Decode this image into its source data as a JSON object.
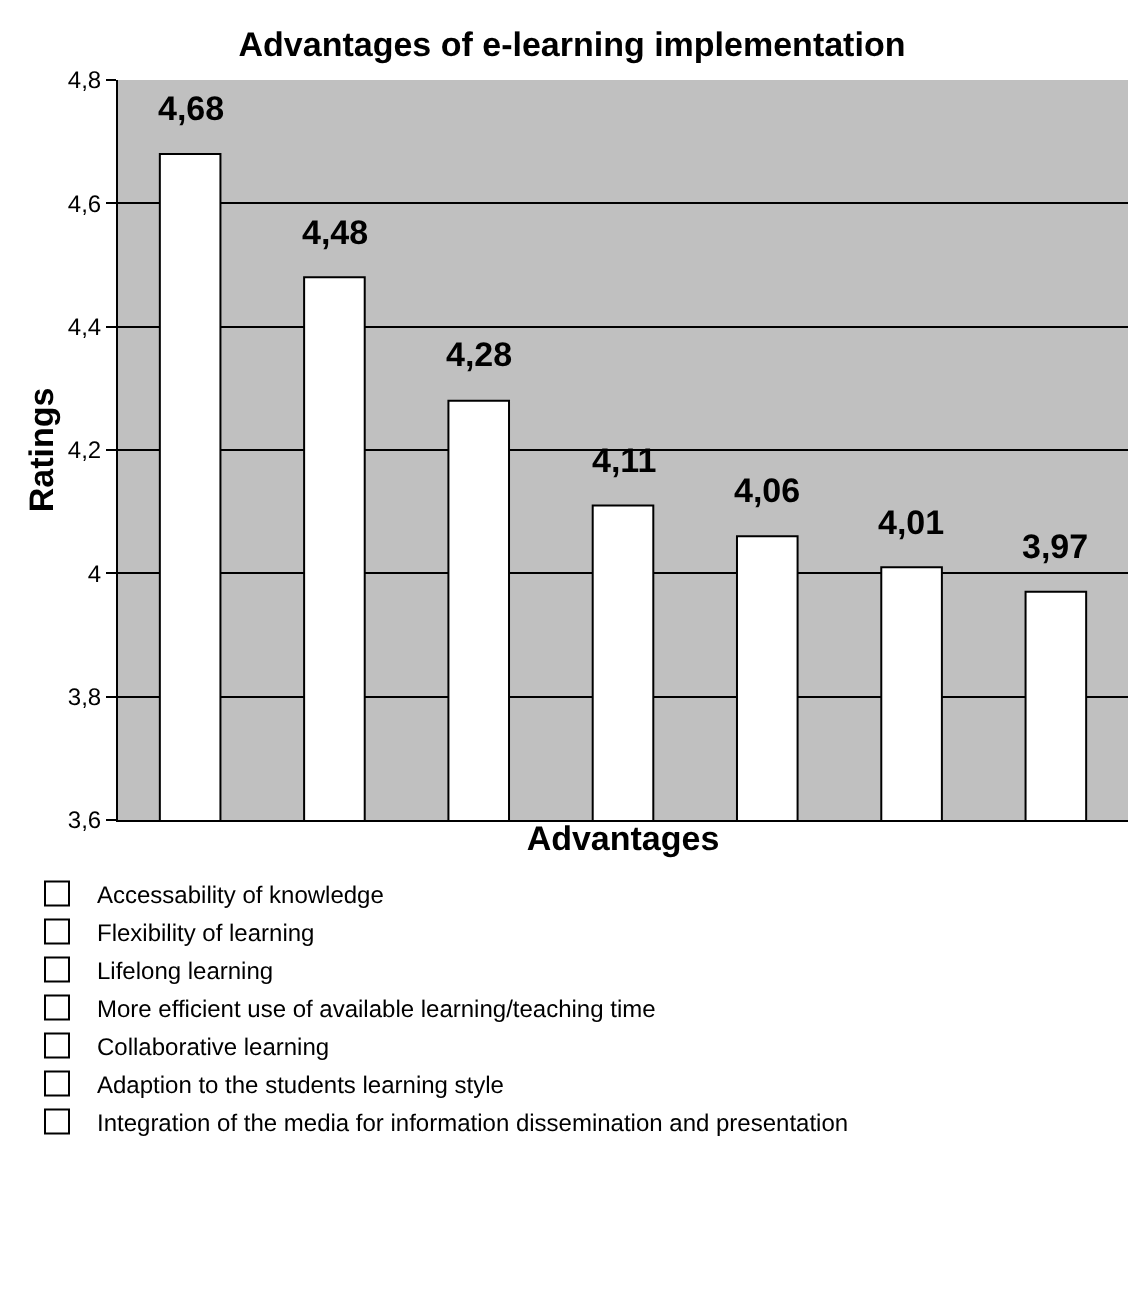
{
  "chart_data": {
    "type": "bar",
    "title": "Advantages of e-learning implementation",
    "xlabel": "Advantages",
    "ylabel": "Ratings",
    "categories": [
      null,
      null,
      null,
      null,
      null,
      null,
      null
    ],
    "series": [
      {
        "name": "Accessability of knowledge",
        "color": "#ffffff",
        "values": [
          4.68,
          null,
          null,
          null,
          null,
          null,
          null
        ],
        "value_labels": [
          "4,68",
          null,
          null,
          null,
          null,
          null,
          null
        ]
      },
      {
        "name": "Flexibility of learning",
        "color": "#ffffff",
        "values": [
          null,
          4.48,
          null,
          null,
          null,
          null,
          null
        ],
        "value_labels": [
          null,
          "4,48",
          null,
          null,
          null,
          null,
          null
        ]
      },
      {
        "name": "Lifelong learning",
        "color": "#ffffff",
        "values": [
          null,
          null,
          4.28,
          null,
          null,
          null,
          null
        ],
        "value_labels": [
          null,
          null,
          "4,28",
          null,
          null,
          null,
          null
        ]
      },
      {
        "name": "More efficient use of available learning/teaching time",
        "color": "#ffffff",
        "values": [
          null,
          null,
          null,
          4.11,
          null,
          null,
          null
        ],
        "value_labels": [
          null,
          null,
          null,
          "4,11",
          null,
          null,
          null
        ]
      },
      {
        "name": "Collaborative learning",
        "color": "#ffffff",
        "values": [
          null,
          null,
          null,
          null,
          4.06,
          null,
          null
        ],
        "value_labels": [
          null,
          null,
          null,
          null,
          "4,06",
          null,
          null
        ]
      },
      {
        "name": "Adaption to the students learning style",
        "color": "#ffffff",
        "values": [
          null,
          null,
          null,
          null,
          null,
          4.01,
          null
        ],
        "value_labels": [
          null,
          null,
          null,
          null,
          null,
          "4,01",
          null
        ]
      },
      {
        "name": "Integration of the media for information dissemination and presentation",
        "color": "#ffffff",
        "values": [
          null,
          null,
          null,
          null,
          null,
          null,
          3.97
        ],
        "value_labels": [
          null,
          null,
          null,
          null,
          null,
          null,
          "3,97"
        ]
      }
    ],
    "ylim": [
      3.6,
      4.8
    ],
    "yticks": [
      {
        "value": 3.6,
        "label": "3,6"
      },
      {
        "value": 3.8,
        "label": "3,8"
      },
      4,
      {
        "value": 4.2,
        "label": "4,2"
      },
      {
        "value": 4.4,
        "label": "4,4"
      },
      {
        "value": 4.6,
        "label": "4,6"
      },
      {
        "value": 4.8,
        "label": "4,8"
      }
    ],
    "grid": "y",
    "legend": "bottom"
  }
}
